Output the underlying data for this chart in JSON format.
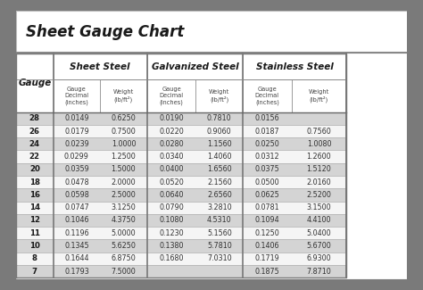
{
  "title": "Sheet Gauge Chart",
  "bg_outer": "#7a7a7a",
  "bg_white": "#ffffff",
  "bg_light_gray": "#f0f0f0",
  "header_bg": "#d8d8d8",
  "row_dark": "#d4d4d4",
  "row_light": "#f5f5f5",
  "border_color": "#999999",
  "text_dark": "#1a1a1a",
  "text_mid": "#333333",
  "col_bounds": [
    0.0,
    0.095,
    0.215,
    0.335,
    0.46,
    0.58,
    0.705,
    0.845,
    1.0
  ],
  "gauges": [
    28,
    26,
    24,
    22,
    20,
    18,
    16,
    14,
    12,
    11,
    10,
    8,
    7
  ],
  "sheet_steel": [
    [
      "0.0149",
      "0.6250"
    ],
    [
      "0.0179",
      "0.7500"
    ],
    [
      "0.0239",
      "1.0000"
    ],
    [
      "0.0299",
      "1.2500"
    ],
    [
      "0.0359",
      "1.5000"
    ],
    [
      "0.0478",
      "2.0000"
    ],
    [
      "0.0598",
      "2.5000"
    ],
    [
      "0.0747",
      "3.1250"
    ],
    [
      "0.1046",
      "4.3750"
    ],
    [
      "0.1196",
      "5.0000"
    ],
    [
      "0.1345",
      "5.6250"
    ],
    [
      "0.1644",
      "6.8750"
    ],
    [
      "0.1793",
      "7.5000"
    ]
  ],
  "galvanized_steel": [
    [
      "0.0190",
      "0.7810"
    ],
    [
      "0.0220",
      "0.9060"
    ],
    [
      "0.0280",
      "1.1560"
    ],
    [
      "0.0340",
      "1.4060"
    ],
    [
      "0.0400",
      "1.6560"
    ],
    [
      "0.0520",
      "2.1560"
    ],
    [
      "0.0640",
      "2.6560"
    ],
    [
      "0.0790",
      "3.2810"
    ],
    [
      "0.1080",
      "4.5310"
    ],
    [
      "0.1230",
      "5.1560"
    ],
    [
      "0.1380",
      "5.7810"
    ],
    [
      "0.1680",
      "7.0310"
    ],
    [
      "",
      ""
    ]
  ],
  "stainless_steel": [
    [
      "0.0156",
      ""
    ],
    [
      "0.0187",
      "0.7560"
    ],
    [
      "0.0250",
      "1.0080"
    ],
    [
      "0.0312",
      "1.2600"
    ],
    [
      "0.0375",
      "1.5120"
    ],
    [
      "0.0500",
      "2.0160"
    ],
    [
      "0.0625",
      "2.5200"
    ],
    [
      "0.0781",
      "3.1500"
    ],
    [
      "0.1094",
      "4.4100"
    ],
    [
      "0.1250",
      "5.0400"
    ],
    [
      "0.1406",
      "5.6700"
    ],
    [
      "0.1719",
      "6.9300"
    ],
    [
      "0.1875",
      "7.8710"
    ]
  ]
}
